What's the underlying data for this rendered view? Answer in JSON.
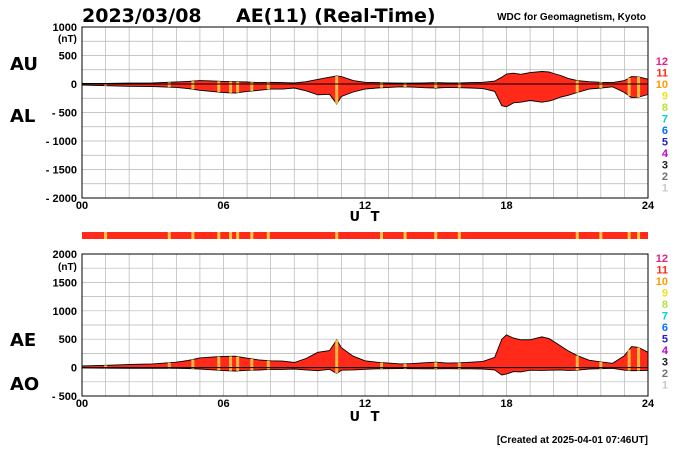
{
  "header": {
    "date": "2023/03/08",
    "title": "AE(11) (Real-Time)",
    "organization": "WDC for Geomagnetism, Kyoto"
  },
  "footer": {
    "created": "[Created at 2025-04-01 07:46UT]"
  },
  "colors": {
    "fill": "#ff2a1a",
    "stripe": "#ff2a1a",
    "mark": "#f5c842",
    "grid": "#b4b4b4"
  },
  "station_legend": [
    {
      "label": "12",
      "color": "#e8207f"
    },
    {
      "label": "11",
      "color": "#ff2a1a"
    },
    {
      "label": "10",
      "color": "#ff9a00"
    },
    {
      "label": "9",
      "color": "#f0e020"
    },
    {
      "label": "8",
      "color": "#b8e040"
    },
    {
      "label": "7",
      "color": "#00d0d0"
    },
    {
      "label": "6",
      "color": "#0070ff"
    },
    {
      "label": "5",
      "color": "#2020c0"
    },
    {
      "label": "4",
      "color": "#c000d0"
    },
    {
      "label": "3",
      "color": "#202020"
    },
    {
      "label": "2",
      "color": "#707070"
    },
    {
      "label": "1",
      "color": "#c8c8c8"
    }
  ],
  "station_marks_ut": [
    1.0,
    3.7,
    4.7,
    5.8,
    6.3,
    6.6,
    7.2,
    7.9,
    10.8,
    12.7,
    13.7,
    15.0,
    16.0,
    21.0,
    22.0,
    23.2,
    23.6
  ],
  "chart_data": [
    {
      "type": "area",
      "panel": "AU/AL",
      "xlabel": "U T",
      "ylabel": "(nT)",
      "xlim": [
        0,
        24
      ],
      "ylim": [
        -2000,
        1000
      ],
      "x_ticks": [
        "00",
        "06",
        "12",
        "18",
        "24"
      ],
      "y_ticks": [
        "1000",
        "500",
        "0",
        "- 500",
        "- 1000",
        "- 1500",
        "- 2000"
      ],
      "grid": true,
      "series": [
        {
          "name": "AU",
          "x": [
            0,
            1,
            2,
            3,
            4,
            4.5,
            5,
            5.5,
            6,
            6.5,
            7,
            7.5,
            8,
            8.5,
            9,
            9.5,
            10,
            10.5,
            10.8,
            11,
            11.5,
            12,
            12.5,
            13,
            13.5,
            14,
            14.5,
            15,
            15.5,
            16,
            16.5,
            17,
            17.5,
            17.8,
            18,
            18.3,
            18.6,
            19,
            19.5,
            19.8,
            20,
            20.3,
            20.6,
            21,
            21.5,
            22,
            22.5,
            23,
            23.3,
            23.6,
            24
          ],
          "values": [
            10,
            10,
            15,
            20,
            35,
            45,
            60,
            55,
            45,
            40,
            35,
            25,
            30,
            25,
            20,
            40,
            80,
            120,
            140,
            130,
            60,
            30,
            25,
            20,
            15,
            15,
            20,
            25,
            20,
            20,
            25,
            30,
            50,
            120,
            175,
            190,
            170,
            200,
            220,
            210,
            185,
            150,
            100,
            60,
            40,
            30,
            25,
            60,
            130,
            125,
            85
          ]
        },
        {
          "name": "AL",
          "x": [
            0,
            1,
            2,
            3,
            4,
            4.5,
            5,
            5.5,
            6,
            6.5,
            7,
            7.5,
            8,
            8.5,
            9,
            9.5,
            10,
            10.5,
            10.8,
            11,
            11.5,
            12,
            12.5,
            13,
            13.5,
            14,
            14.5,
            15,
            15.5,
            16,
            16.5,
            17,
            17.5,
            17.8,
            18,
            18.3,
            18.6,
            19,
            19.5,
            19.8,
            20,
            20.3,
            20.6,
            21,
            21.5,
            22,
            22.5,
            23,
            23.3,
            23.6,
            24
          ],
          "values": [
            -20,
            -30,
            -40,
            -45,
            -60,
            -80,
            -110,
            -130,
            -150,
            -160,
            -130,
            -110,
            -90,
            -90,
            -70,
            -120,
            -190,
            -180,
            -350,
            -220,
            -140,
            -90,
            -70,
            -60,
            -50,
            -55,
            -65,
            -70,
            -60,
            -65,
            -70,
            -80,
            -130,
            -380,
            -400,
            -330,
            -320,
            -290,
            -320,
            -300,
            -275,
            -230,
            -200,
            -150,
            -90,
            -70,
            -50,
            -150,
            -240,
            -230,
            -185
          ]
        }
      ]
    },
    {
      "type": "area",
      "panel": "AE/AO",
      "xlabel": "U T",
      "ylabel": "(nT)",
      "xlim": [
        0,
        24
      ],
      "ylim": [
        -500,
        2000
      ],
      "x_ticks": [
        "00",
        "06",
        "12",
        "18",
        "24"
      ],
      "y_ticks": [
        "2000",
        "1500",
        "1000",
        "500",
        "0",
        "- 500"
      ],
      "grid": true,
      "series": [
        {
          "name": "AE",
          "x": [
            0,
            1,
            2,
            3,
            4,
            4.5,
            5,
            5.5,
            6,
            6.5,
            7,
            7.5,
            8,
            8.5,
            9,
            9.5,
            10,
            10.5,
            10.8,
            11,
            11.5,
            12,
            12.5,
            13,
            13.5,
            14,
            14.5,
            15,
            15.5,
            16,
            16.5,
            17,
            17.5,
            17.8,
            18,
            18.3,
            18.6,
            19,
            19.5,
            19.8,
            20,
            20.3,
            20.6,
            21,
            21.5,
            22,
            22.5,
            23,
            23.3,
            23.6,
            24
          ],
          "values": [
            30,
            40,
            55,
            65,
            95,
            125,
            170,
            185,
            195,
            200,
            165,
            135,
            120,
            115,
            90,
            160,
            270,
            300,
            490,
            350,
            200,
            120,
            95,
            80,
            65,
            70,
            85,
            95,
            80,
            85,
            95,
            110,
            180,
            500,
            575,
            520,
            490,
            490,
            540,
            510,
            460,
            380,
            300,
            210,
            130,
            100,
            75,
            210,
            370,
            355,
            270
          ]
        },
        {
          "name": "AO",
          "x": [
            0,
            1,
            2,
            3,
            4,
            4.5,
            5,
            5.5,
            6,
            6.5,
            7,
            7.5,
            8,
            8.5,
            9,
            9.5,
            10,
            10.5,
            10.8,
            11,
            11.5,
            12,
            12.5,
            13,
            13.5,
            14,
            14.5,
            15,
            15.5,
            16,
            16.5,
            17,
            17.5,
            17.8,
            18,
            18.3,
            18.6,
            19,
            19.5,
            19.8,
            20,
            20.3,
            20.6,
            21,
            21.5,
            22,
            22.5,
            23,
            23.3,
            23.6,
            24
          ],
          "values": [
            -5,
            -10,
            -12,
            -12,
            -12,
            -18,
            -25,
            -38,
            -52,
            -60,
            -48,
            -42,
            -30,
            -32,
            -25,
            -40,
            -55,
            -30,
            -105,
            -45,
            -40,
            -30,
            -22,
            -20,
            -18,
            -20,
            -22,
            -22,
            -20,
            -22,
            -22,
            -25,
            -40,
            -130,
            -112,
            -70,
            -75,
            -45,
            -50,
            -45,
            -45,
            -40,
            -50,
            -45,
            -25,
            -20,
            -12,
            -45,
            -55,
            -52,
            -50
          ]
        }
      ]
    }
  ],
  "panel_labels": {
    "top_upper": "AU",
    "top_lower": "AL",
    "bottom_upper": "AE",
    "bottom_lower": "AO",
    "unit": "(nT)"
  }
}
